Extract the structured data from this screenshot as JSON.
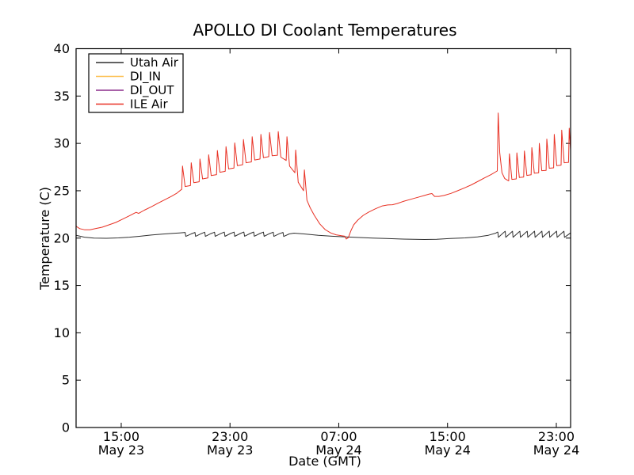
{
  "chart_data": {
    "type": "line",
    "title": "APOLLO DI Coolant Temperatures",
    "xlabel": "Date (GMT)",
    "ylabel": "Temperature (C)",
    "ylim": [
      0,
      40
    ],
    "xlim_hours": [
      11.68,
      48.05
    ],
    "x_units": "hours since May 23 00:00 GMT",
    "grid": false,
    "legend_position": "upper-left",
    "frame_color": "#000000",
    "yticks": [
      0,
      5,
      10,
      15,
      20,
      25,
      30,
      35,
      40
    ],
    "xticks": [
      {
        "hour": 15,
        "time": "15:00",
        "date": "May 23"
      },
      {
        "hour": 23,
        "time": "23:00",
        "date": "May 23"
      },
      {
        "hour": 31,
        "time": "07:00",
        "date": "May 24"
      },
      {
        "hour": 39,
        "time": "15:00",
        "date": "May 24"
      },
      {
        "hour": 47,
        "time": "23:00",
        "date": "May 24"
      }
    ],
    "series": [
      {
        "name": "Utah Air",
        "color": "#2f2f2f",
        "points": [
          [
            11.68,
            20.3
          ],
          [
            12.3,
            20.1
          ],
          [
            13.0,
            20.0
          ],
          [
            13.9,
            19.98
          ],
          [
            14.8,
            20.02
          ],
          [
            15.6,
            20.1
          ],
          [
            16.4,
            20.2
          ],
          [
            17.2,
            20.32
          ],
          [
            18.0,
            20.42
          ],
          [
            18.8,
            20.5
          ],
          [
            19.3,
            20.55
          ],
          [
            19.7,
            20.6
          ],
          [
            19.75,
            20.18
          ],
          [
            20.15,
            20.45
          ],
          [
            20.42,
            20.6
          ],
          [
            20.47,
            20.18
          ],
          [
            20.87,
            20.46
          ],
          [
            21.14,
            20.62
          ],
          [
            21.19,
            20.18
          ],
          [
            21.59,
            20.47
          ],
          [
            21.86,
            20.62
          ],
          [
            21.91,
            20.18
          ],
          [
            22.31,
            20.47
          ],
          [
            22.58,
            20.63
          ],
          [
            22.63,
            20.19
          ],
          [
            23.03,
            20.48
          ],
          [
            23.3,
            20.63
          ],
          [
            23.35,
            20.19
          ],
          [
            23.75,
            20.48
          ],
          [
            24.02,
            20.64
          ],
          [
            24.07,
            20.2
          ],
          [
            24.47,
            20.48
          ],
          [
            24.74,
            20.64
          ],
          [
            24.79,
            20.2
          ],
          [
            25.19,
            20.48
          ],
          [
            25.46,
            20.63
          ],
          [
            25.51,
            20.19
          ],
          [
            25.91,
            20.47
          ],
          [
            26.18,
            20.62
          ],
          [
            26.23,
            20.18
          ],
          [
            26.63,
            20.46
          ],
          [
            26.9,
            20.6
          ],
          [
            26.95,
            20.17
          ],
          [
            27.35,
            20.44
          ],
          [
            27.7,
            20.52
          ],
          [
            28.6,
            20.42
          ],
          [
            29.5,
            20.3
          ],
          [
            30.5,
            20.2
          ],
          [
            31.5,
            20.12
          ],
          [
            32.5,
            20.06
          ],
          [
            33.5,
            20.0
          ],
          [
            34.5,
            19.95
          ],
          [
            35.5,
            19.9
          ],
          [
            36.5,
            19.87
          ],
          [
            37.3,
            19.85
          ],
          [
            38.2,
            19.88
          ],
          [
            39.2,
            19.95
          ],
          [
            40.3,
            20.02
          ],
          [
            41.2,
            20.12
          ],
          [
            42.0,
            20.3
          ],
          [
            42.55,
            20.52
          ],
          [
            42.65,
            20.62
          ],
          [
            42.7,
            20.62
          ],
          [
            42.74,
            20.08
          ],
          [
            43.2,
            20.68
          ],
          [
            43.24,
            20.72
          ],
          [
            43.28,
            20.08
          ],
          [
            43.74,
            20.68
          ],
          [
            43.78,
            20.72
          ],
          [
            43.82,
            20.08
          ],
          [
            44.28,
            20.68
          ],
          [
            44.32,
            20.72
          ],
          [
            44.36,
            20.08
          ],
          [
            44.82,
            20.68
          ],
          [
            44.86,
            20.72
          ],
          [
            44.9,
            20.08
          ],
          [
            45.36,
            20.68
          ],
          [
            45.4,
            20.73
          ],
          [
            45.44,
            20.08
          ],
          [
            45.9,
            20.68
          ],
          [
            45.94,
            20.73
          ],
          [
            45.98,
            20.08
          ],
          [
            46.44,
            20.68
          ],
          [
            46.48,
            20.73
          ],
          [
            46.52,
            20.08
          ],
          [
            46.98,
            20.68
          ],
          [
            47.02,
            20.73
          ],
          [
            47.06,
            20.08
          ],
          [
            47.52,
            20.68
          ],
          [
            47.56,
            20.72
          ],
          [
            47.6,
            20.08
          ],
          [
            48.05,
            20.55
          ]
        ]
      },
      {
        "name": "DI_IN",
        "color": "#fdbf4e",
        "points": []
      },
      {
        "name": "DI_OUT",
        "color": "#8b2d8b",
        "points": []
      },
      {
        "name": "ILE Air",
        "color": "#e83023",
        "points": [
          [
            11.68,
            21.25
          ],
          [
            11.95,
            21.0
          ],
          [
            12.3,
            20.88
          ],
          [
            12.7,
            20.88
          ],
          [
            13.1,
            21.0
          ],
          [
            13.6,
            21.15
          ],
          [
            14.1,
            21.4
          ],
          [
            14.6,
            21.65
          ],
          [
            15.1,
            22.0
          ],
          [
            15.6,
            22.35
          ],
          [
            15.95,
            22.62
          ],
          [
            16.1,
            22.72
          ],
          [
            16.28,
            22.6
          ],
          [
            16.7,
            22.95
          ],
          [
            17.2,
            23.3
          ],
          [
            17.7,
            23.68
          ],
          [
            18.2,
            24.05
          ],
          [
            18.7,
            24.42
          ],
          [
            19.1,
            24.75
          ],
          [
            19.4,
            25.1
          ],
          [
            19.45,
            25.15
          ],
          [
            19.51,
            27.6
          ],
          [
            19.7,
            25.45
          ],
          [
            20.09,
            25.55
          ],
          [
            20.15,
            27.95
          ],
          [
            20.34,
            25.85
          ],
          [
            20.73,
            25.95
          ],
          [
            20.79,
            28.35
          ],
          [
            20.98,
            26.25
          ],
          [
            21.37,
            26.35
          ],
          [
            21.43,
            28.8
          ],
          [
            21.62,
            26.6
          ],
          [
            22.01,
            26.7
          ],
          [
            22.07,
            29.25
          ],
          [
            22.26,
            26.95
          ],
          [
            22.65,
            27.05
          ],
          [
            22.71,
            29.65
          ],
          [
            22.9,
            27.3
          ],
          [
            23.29,
            27.4
          ],
          [
            23.35,
            30.05
          ],
          [
            23.54,
            27.65
          ],
          [
            23.93,
            27.75
          ],
          [
            23.99,
            30.4
          ],
          [
            24.18,
            27.95
          ],
          [
            24.57,
            28.05
          ],
          [
            24.63,
            30.7
          ],
          [
            24.82,
            28.25
          ],
          [
            25.21,
            28.35
          ],
          [
            25.27,
            30.95
          ],
          [
            25.46,
            28.5
          ],
          [
            25.85,
            28.6
          ],
          [
            25.91,
            31.15
          ],
          [
            26.1,
            28.7
          ],
          [
            26.49,
            28.75
          ],
          [
            26.55,
            31.25
          ],
          [
            26.74,
            28.55
          ],
          [
            27.13,
            28.2
          ],
          [
            27.19,
            30.7
          ],
          [
            27.38,
            27.6
          ],
          [
            27.77,
            26.9
          ],
          [
            27.83,
            29.3
          ],
          [
            28.02,
            25.9
          ],
          [
            28.41,
            25.0
          ],
          [
            28.47,
            27.2
          ],
          [
            28.66,
            24.0
          ],
          [
            28.9,
            23.2
          ],
          [
            29.2,
            22.4
          ],
          [
            29.6,
            21.5
          ],
          [
            30.0,
            20.9
          ],
          [
            30.4,
            20.55
          ],
          [
            30.8,
            20.35
          ],
          [
            31.2,
            20.25
          ],
          [
            31.45,
            20.2
          ],
          [
            31.55,
            19.9
          ],
          [
            31.7,
            20.05
          ],
          [
            31.9,
            20.8
          ],
          [
            32.1,
            21.4
          ],
          [
            32.4,
            21.9
          ],
          [
            32.8,
            22.4
          ],
          [
            33.2,
            22.75
          ],
          [
            33.7,
            23.1
          ],
          [
            34.2,
            23.4
          ],
          [
            34.6,
            23.5
          ],
          [
            34.95,
            23.52
          ],
          [
            35.3,
            23.65
          ],
          [
            35.8,
            23.9
          ],
          [
            36.3,
            24.1
          ],
          [
            36.8,
            24.3
          ],
          [
            37.3,
            24.5
          ],
          [
            37.65,
            24.65
          ],
          [
            37.85,
            24.7
          ],
          [
            38.05,
            24.4
          ],
          [
            38.35,
            24.4
          ],
          [
            38.75,
            24.5
          ],
          [
            39.25,
            24.72
          ],
          [
            39.75,
            25.0
          ],
          [
            40.25,
            25.3
          ],
          [
            40.75,
            25.62
          ],
          [
            41.25,
            26.0
          ],
          [
            41.75,
            26.38
          ],
          [
            42.2,
            26.7
          ],
          [
            42.55,
            27.0
          ],
          [
            42.66,
            27.1
          ],
          [
            42.72,
            33.2
          ],
          [
            42.84,
            29.0
          ],
          [
            43.0,
            26.9
          ],
          [
            43.2,
            26.3
          ],
          [
            43.42,
            26.1
          ],
          [
            43.5,
            26.05
          ],
          [
            43.55,
            28.9
          ],
          [
            43.73,
            26.2
          ],
          [
            44.05,
            26.25
          ],
          [
            44.1,
            29.0
          ],
          [
            44.28,
            26.4
          ],
          [
            44.6,
            26.45
          ],
          [
            44.65,
            29.2
          ],
          [
            44.83,
            26.62
          ],
          [
            45.15,
            26.68
          ],
          [
            45.2,
            29.55
          ],
          [
            45.38,
            26.85
          ],
          [
            45.7,
            26.9
          ],
          [
            45.75,
            30.0
          ],
          [
            45.93,
            27.12
          ],
          [
            46.25,
            27.15
          ],
          [
            46.3,
            30.45
          ],
          [
            46.48,
            27.38
          ],
          [
            46.8,
            27.42
          ],
          [
            46.85,
            30.95
          ],
          [
            47.03,
            27.65
          ],
          [
            47.35,
            27.7
          ],
          [
            47.4,
            31.4
          ],
          [
            47.58,
            27.95
          ],
          [
            47.9,
            28.0
          ],
          [
            47.95,
            31.6
          ],
          [
            48.05,
            29.3
          ]
        ]
      }
    ]
  }
}
